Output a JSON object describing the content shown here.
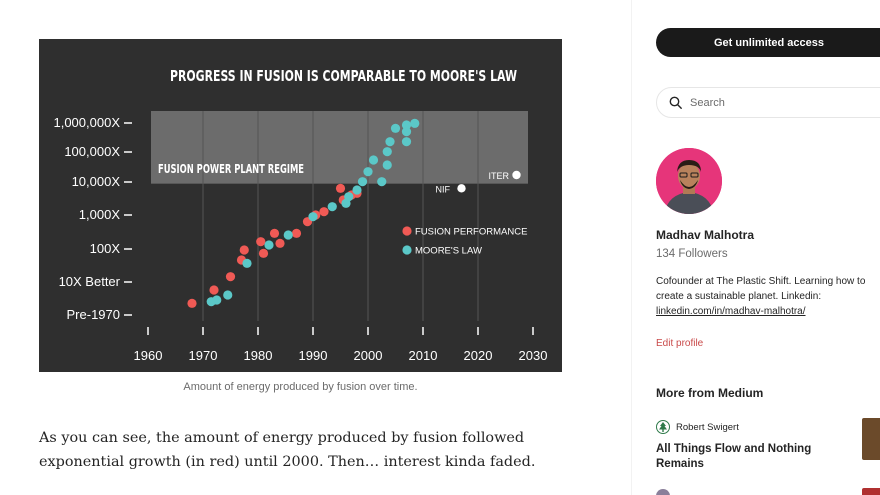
{
  "article": {
    "figure_caption": "Amount of energy produced by fusion over time.",
    "paragraph": "As you can see, the amount of energy produced by fusion followed exponential growth (in red) until 2000. Then… interest kinda faded."
  },
  "sidebar": {
    "cta_label": "Get unlimited access",
    "search_placeholder": "Search",
    "author_name": "Madhav Malhotra",
    "followers": "134 Followers",
    "bio_text": "Cofounder at The Plastic Shift. Learning how to create a sustainable planet. Linkedin:",
    "bio_link": "linkedin.com/in/madhav-malhotra/",
    "edit_profile": "Edit profile",
    "more_heading": "More from Medium",
    "recommendations": [
      {
        "author": "Robert Swigert",
        "title": "All Things Flow and Nothing Remains"
      }
    ]
  },
  "colors": {
    "fusion": "#f05a55",
    "moore": "#5bc8c8",
    "figure_bg": "#2f2f2f",
    "accent_link": "#c94a4a"
  },
  "chart_data": {
    "type": "scatter",
    "title": "PROGRESS IN FUSION IS COMPARABLE TO MOORE'S LAW",
    "x_ticks": [
      "1960",
      "1970",
      "1980",
      "1990",
      "2000",
      "2010",
      "2020",
      "2030"
    ],
    "y_ticks": [
      "Pre-1970",
      "10X Better",
      "100X",
      "1,000X",
      "10,000X",
      "100,000X",
      "1,000,000X"
    ],
    "xlim": [
      1960,
      2030
    ],
    "ylim": [
      0,
      6
    ],
    "y_scale": "log10 multiples",
    "region_label": "FUSION POWER PLANT REGIME",
    "region_y_range": [
      4,
      6
    ],
    "legend": [
      {
        "label": "FUSION PERFORMANCE",
        "color": "#f05a55"
      },
      {
        "label": "MOORE'S LAW",
        "color": "#5bc8c8"
      }
    ],
    "annotations": [
      {
        "label": "NIF",
        "x": 2017,
        "y": 3.8
      },
      {
        "label": "ITER",
        "x": 2027,
        "y": 4.2
      }
    ],
    "series": [
      {
        "name": "FUSION PERFORMANCE",
        "color": "#f05a55",
        "points": [
          [
            1968,
            0.35
          ],
          [
            1972,
            0.75
          ],
          [
            1975,
            1.15
          ],
          [
            1977,
            1.65
          ],
          [
            1977.5,
            1.95
          ],
          [
            1980.5,
            2.2
          ],
          [
            1981,
            1.85
          ],
          [
            1983,
            2.45
          ],
          [
            1984,
            2.15
          ],
          [
            1987,
            2.45
          ],
          [
            1989,
            2.8
          ],
          [
            1990.5,
            3.0
          ],
          [
            1992,
            3.1
          ],
          [
            1995,
            3.8
          ],
          [
            1995.5,
            3.45
          ],
          [
            1997,
            3.6
          ],
          [
            1998,
            3.65
          ]
        ]
      },
      {
        "name": "MOORE'S LAW",
        "color": "#5bc8c8",
        "points": [
          [
            1971.5,
            0.4
          ],
          [
            1972.5,
            0.45
          ],
          [
            1974.5,
            0.6
          ],
          [
            1978,
            1.55
          ],
          [
            1982,
            2.1
          ],
          [
            1985.5,
            2.4
          ],
          [
            1990,
            2.95
          ],
          [
            1993.5,
            3.25
          ],
          [
            1996,
            3.35
          ],
          [
            1996.5,
            3.55
          ],
          [
            1998,
            3.75
          ],
          [
            1999,
            4.0
          ],
          [
            2000,
            4.3
          ],
          [
            2001,
            4.65
          ],
          [
            2002.5,
            4.0
          ],
          [
            2003.5,
            4.5
          ],
          [
            2003.5,
            4.9
          ],
          [
            2004,
            5.2
          ],
          [
            2005,
            5.6
          ],
          [
            2007,
            5.7
          ],
          [
            2007,
            5.5
          ],
          [
            2007,
            5.2
          ],
          [
            2008.5,
            5.75
          ]
        ]
      }
    ]
  }
}
